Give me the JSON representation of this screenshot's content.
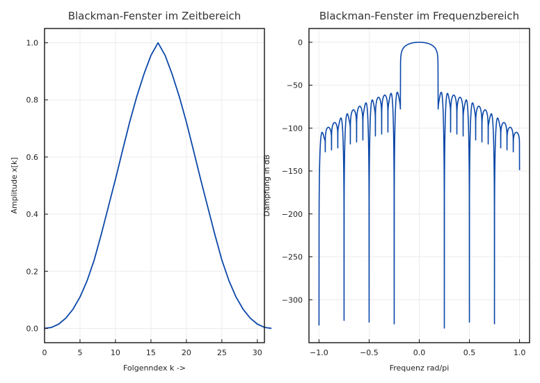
{
  "chart_data": [
    {
      "type": "line",
      "title": "Blackman-Fenster im Zeitbereich",
      "xlabel": "Folgenndex k ->",
      "ylabel": "Amplitude x[k]",
      "xlim": [
        0,
        31
      ],
      "ylim": [
        -0.05,
        1.05
      ],
      "xticks": [
        0,
        5,
        10,
        15,
        20,
        25,
        30
      ],
      "xtick_labels": [
        "0",
        "5",
        "10",
        "15",
        "20",
        "25",
        "30"
      ],
      "yticks": [
        0.0,
        0.2,
        0.4,
        0.6,
        0.8,
        1.0
      ],
      "ytick_labels": [
        "0.0",
        "0.2",
        "0.4",
        "0.6",
        "0.8",
        "1.0"
      ],
      "grid": true,
      "series": [
        {
          "color": "#0a47a8",
          "x": [
            0,
            1,
            2,
            3,
            4,
            5,
            6,
            7,
            8,
            9,
            10,
            11,
            12,
            13,
            14,
            15,
            16,
            17,
            18,
            19,
            20,
            21,
            22,
            23,
            24,
            25,
            26,
            27,
            28,
            29,
            30,
            31,
            32
          ],
          "y": [
            0.0,
            0.0036,
            0.0151,
            0.0358,
            0.0668,
            0.1098,
            0.1669,
            0.2394,
            0.3297,
            0.4259,
            0.5225,
            0.6232,
            0.7221,
            0.8114,
            0.8891,
            0.9559,
            1.0,
            0.9559,
            0.8891,
            0.8114,
            0.7221,
            0.6232,
            0.5225,
            0.4259,
            0.3297,
            0.2394,
            0.1669,
            0.1098,
            0.0668,
            0.0358,
            0.0151,
            0.0036,
            0.0
          ]
        }
      ]
    },
    {
      "type": "line",
      "title": "Blackman-Fenster im Frequenzbereich",
      "xlabel": "Frequenz rad/pi",
      "ylabel": "Dämpfung in dB",
      "xlim": [
        -1.1,
        1.1
      ],
      "ylim": [
        -350,
        16
      ],
      "xticks": [
        -1.0,
        -0.5,
        0.0,
        0.5,
        1.0
      ],
      "xtick_labels": [
        "−1.0",
        "−0.5",
        "0.0",
        "0.5",
        "1.0"
      ],
      "yticks": [
        0,
        -50,
        -100,
        -150,
        -200,
        -250,
        -300
      ],
      "ytick_labels": [
        "0",
        "−50",
        "−100",
        "−150",
        "−200",
        "−250",
        "−300"
      ],
      "grid": true,
      "main_lobe_half_width": 0.1875,
      "null_spacing": 0.0625,
      "deep_nulls": [
        {
          "x": -1.0,
          "y": -330
        },
        {
          "x": -0.75,
          "y": -324
        },
        {
          "x": -0.5,
          "y": -326
        },
        {
          "x": -0.25,
          "y": -328
        },
        {
          "x": 0.25,
          "y": -333
        },
        {
          "x": 0.5,
          "y": -326
        },
        {
          "x": 0.75,
          "y": -328
        }
      ],
      "sidelobe_peak_db": -58,
      "edge_value_db": -149,
      "series": [
        {
          "color": "#0a47a8"
        }
      ]
    }
  ]
}
